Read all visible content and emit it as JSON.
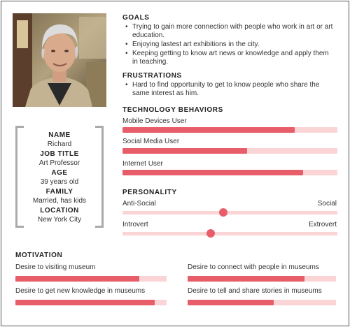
{
  "profile": {
    "fields": [
      {
        "label": "NAME",
        "value": "Richard"
      },
      {
        "label": "JOB TITLE",
        "value": "Art Professor"
      },
      {
        "label": "AGE",
        "value": "39 years old"
      },
      {
        "label": "FAMILY",
        "value": "Married, has kids"
      },
      {
        "label": "LOCATION",
        "value": "New York City"
      }
    ]
  },
  "goals": {
    "title": "GOALS",
    "items": [
      "Trying to gain more connection with people who work in art or art education.",
      "Enjoying lastest art exhibitions in the city.",
      "Keeping getting to know art news or knowledge and apply them in teaching."
    ]
  },
  "frustrations": {
    "title": "FRUSTRATIONS",
    "items": [
      "Hard to find opportunity to get to know people who share the same interest as him."
    ]
  },
  "technology": {
    "title": "TECHNOLOGY BEHAVIORS",
    "bars": [
      {
        "label": "Mobile Devices User",
        "value": 0.8
      },
      {
        "label": "Social Media User",
        "value": 0.58
      },
      {
        "label": "Internet User",
        "value": 0.84
      }
    ]
  },
  "personality": {
    "title": "PERSONALITY",
    "scales": [
      {
        "left": "Anti-Social",
        "right": "Social",
        "value": 0.47
      },
      {
        "left": "Introvert",
        "right": "Extrovert",
        "value": 0.41
      }
    ]
  },
  "motivation": {
    "title": "MOTIVATION",
    "items": [
      {
        "label": "Desire to visiting museum",
        "value": 0.82
      },
      {
        "label": "Desire to connect with people in museums",
        "value": 0.79
      },
      {
        "label": "Desire to get new knowledge in museums",
        "value": 0.92
      },
      {
        "label": "Desire to tell and share stories in museums",
        "value": 0.58
      }
    ]
  },
  "colors": {
    "accent": "#e85d6a",
    "track": "#fbd4d6",
    "bracket": "#aaaaaa"
  }
}
